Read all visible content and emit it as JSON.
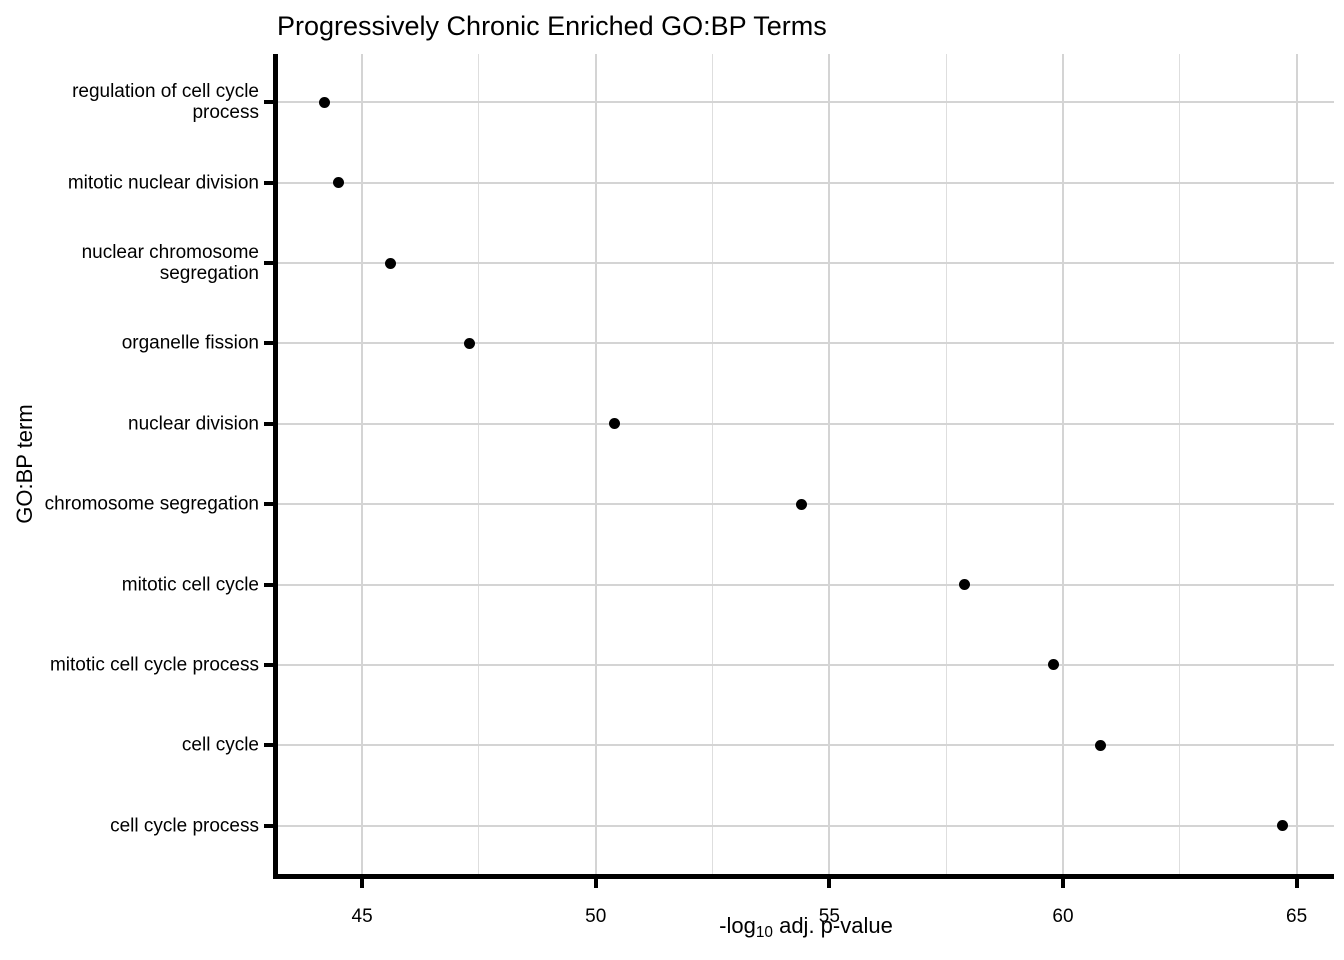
{
  "chart_data": {
    "type": "scatter",
    "title": "Progressively Chronic Enriched GO:BP Terms",
    "xlabel": "-log10 adj. p-value",
    "xlabel_parts": {
      "prefix": "-log",
      "sub": "10",
      "suffix": " adj. p-value"
    },
    "ylabel": "GO:BP term",
    "categories": [
      "regulation of cell cycle process",
      "mitotic nuclear division",
      "nuclear chromosome segregation",
      "organelle fission",
      "nuclear division",
      "chromosome segregation",
      "mitotic cell cycle",
      "mitotic cell cycle process",
      "cell cycle",
      "cell cycle process"
    ],
    "category_lines": [
      [
        "regulation of cell cycle",
        "process"
      ],
      [
        "mitotic nuclear division"
      ],
      [
        "nuclear chromosome",
        "segregation"
      ],
      [
        "organelle fission"
      ],
      [
        "nuclear division"
      ],
      [
        "chromosome segregation"
      ],
      [
        "mitotic cell cycle"
      ],
      [
        "mitotic cell cycle process"
      ],
      [
        "cell cycle"
      ],
      [
        "cell cycle process"
      ]
    ],
    "values": [
      44.2,
      44.5,
      45.6,
      47.3,
      50.4,
      54.4,
      57.9,
      59.8,
      60.8,
      64.7
    ],
    "xlim": [
      43.2,
      65.8
    ],
    "x_major_ticks": [
      45,
      50,
      55,
      60,
      65
    ],
    "x_minor_ticks": [
      47.5,
      52.5,
      57.5,
      62.5
    ],
    "grid": true,
    "legend": "none",
    "point_color": "#000000",
    "axis_color": "#000000",
    "text_color": "#000000",
    "grid_major_color": "#d4d4d4",
    "grid_minor_color": "#dedede",
    "background": "#ffffff"
  }
}
